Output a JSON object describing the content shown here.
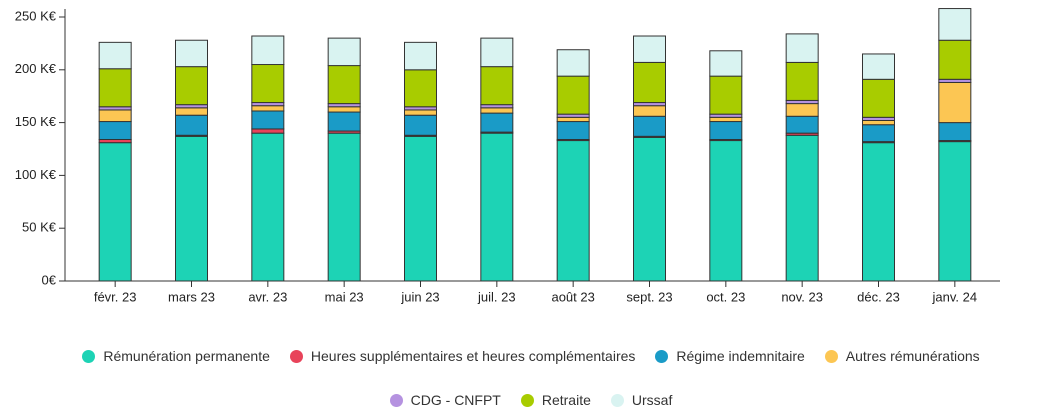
{
  "chart_data": {
    "type": "stacked_bar",
    "categories": [
      "févr. 23",
      "mars 23",
      "avr. 23",
      "mai 23",
      "juin 23",
      "juil. 23",
      "août 23",
      "sept. 23",
      "oct. 23",
      "nov. 23",
      "déc. 23",
      "janv. 24"
    ],
    "series": [
      {
        "name": "Rémunération permanente",
        "color": "#1dd3b5",
        "values": [
          131,
          137,
          140,
          140,
          137,
          140,
          133,
          136,
          133,
          138,
          131,
          132
        ]
      },
      {
        "name": "Heures supplémentaires et heures complémentaires",
        "color": "#e8435a",
        "values": [
          3,
          1,
          4,
          2,
          1,
          1,
          1,
          1,
          1,
          2,
          1,
          1
        ]
      },
      {
        "name": "Régime indemnitaire",
        "color": "#1a9bc7",
        "values": [
          17,
          19,
          17,
          18,
          19,
          18,
          17,
          19,
          17,
          16,
          16,
          17
        ]
      },
      {
        "name": "Autres rémunérations",
        "color": "#fcc653",
        "values": [
          11,
          7,
          5,
          5,
          5,
          5,
          4,
          10,
          4,
          12,
          4,
          38
        ]
      },
      {
        "name": "CDG - CNFPT",
        "color": "#b592e0",
        "values": [
          3,
          3,
          3,
          3,
          3,
          3,
          3,
          3,
          3,
          3,
          3,
          3
        ]
      },
      {
        "name": "Retraite",
        "color": "#a8cc00",
        "values": [
          36,
          36,
          36,
          36,
          35,
          36,
          36,
          38,
          36,
          36,
          36,
          37
        ]
      },
      {
        "name": "Urssaf",
        "color": "#d9f3f1",
        "values": [
          25,
          25,
          27,
          26,
          26,
          27,
          25,
          25,
          24,
          27,
          24,
          30
        ]
      }
    ],
    "ylim": [
      0,
      250
    ],
    "yticks": [
      {
        "value": 0,
        "label": "0€"
      },
      {
        "value": 50,
        "label": "50 K€"
      },
      {
        "value": 100,
        "label": "100 K€"
      },
      {
        "value": 150,
        "label": "150 K€"
      },
      {
        "value": 200,
        "label": "200 K€"
      },
      {
        "value": 250,
        "label": "250 K€"
      }
    ]
  }
}
